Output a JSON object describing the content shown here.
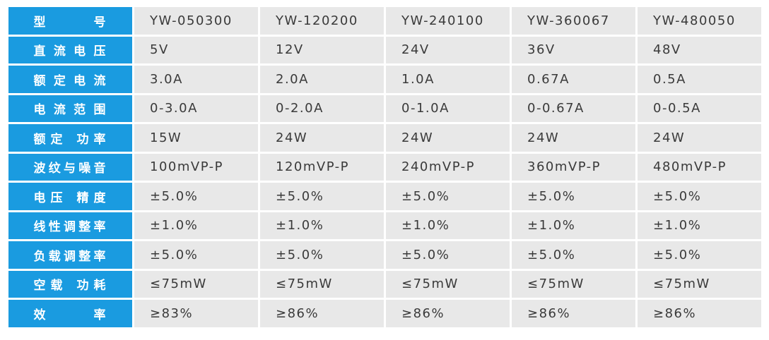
{
  "table": {
    "rows": [
      [
        "型 号",
        "YW-050300",
        "YW-120200",
        "YW-240100",
        "YW-360067",
        "YW-480050"
      ],
      [
        "直流电压",
        "5V",
        "12V",
        "24V",
        "36V",
        "48V"
      ],
      [
        "额定电流",
        "3.0A",
        "2.0A",
        "1.0A",
        "0.67A",
        "0.5A"
      ],
      [
        "电流范围",
        "0-3.0A",
        "0-2.0A",
        "0-1.0A",
        "0-0.67A",
        "0-0.5A"
      ],
      [
        "额定 功率",
        "15W",
        "24W",
        "24W",
        "24W",
        "24W"
      ],
      [
        "波纹与噪音",
        "100mVP-P",
        "120mVP-P",
        "240mVP-P",
        "360mVP-P",
        "480mVP-P"
      ],
      [
        "电压 精度",
        "±5.0%",
        "±5.0%",
        "±5.0%",
        "±5.0%",
        "±5.0%"
      ],
      [
        "线性调整率",
        "±1.0%",
        "±1.0%",
        "±1.0%",
        "±1.0%",
        "±1.0%"
      ],
      [
        "负载调整率",
        "±5.0%",
        "±5.0%",
        "±5.0%",
        "±5.0%",
        "±5.0%"
      ],
      [
        "空载 功耗",
        "≤75mW",
        "≤75mW",
        "≤75mW",
        "≤75mW",
        "≤75mW"
      ],
      [
        "效 率",
        "≥83%",
        "≥86%",
        "≥86%",
        "≥86%",
        "≥86%"
      ]
    ]
  }
}
